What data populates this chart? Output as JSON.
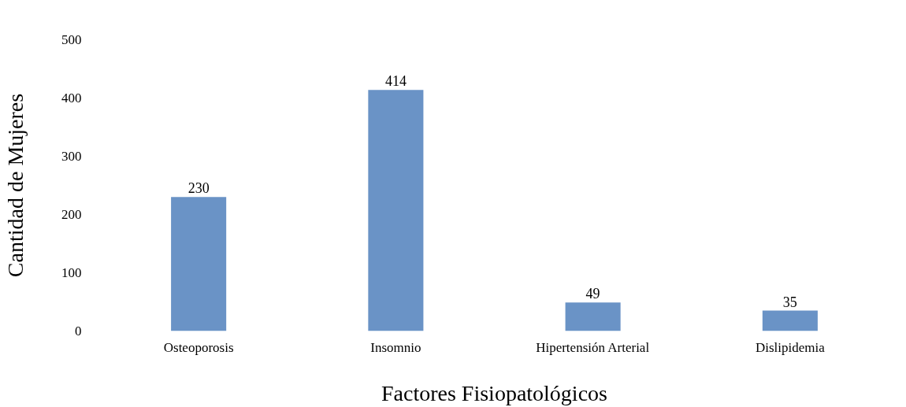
{
  "chart_data": {
    "type": "bar",
    "xlabel": "Factores Fisiopatológicos",
    "ylabel": "Cantidad de Mujeres",
    "categories": [
      "Osteoporosis",
      "Insomnio",
      "Hipertensión Arterial",
      "Dislipidemia"
    ],
    "values": [
      230,
      414,
      49,
      35
    ],
    "color": "#6a93c6",
    "ylim": [
      0,
      500
    ],
    "yticks": [
      0,
      100,
      200,
      300,
      400,
      500
    ],
    "grid": false,
    "data_labels": true
  }
}
